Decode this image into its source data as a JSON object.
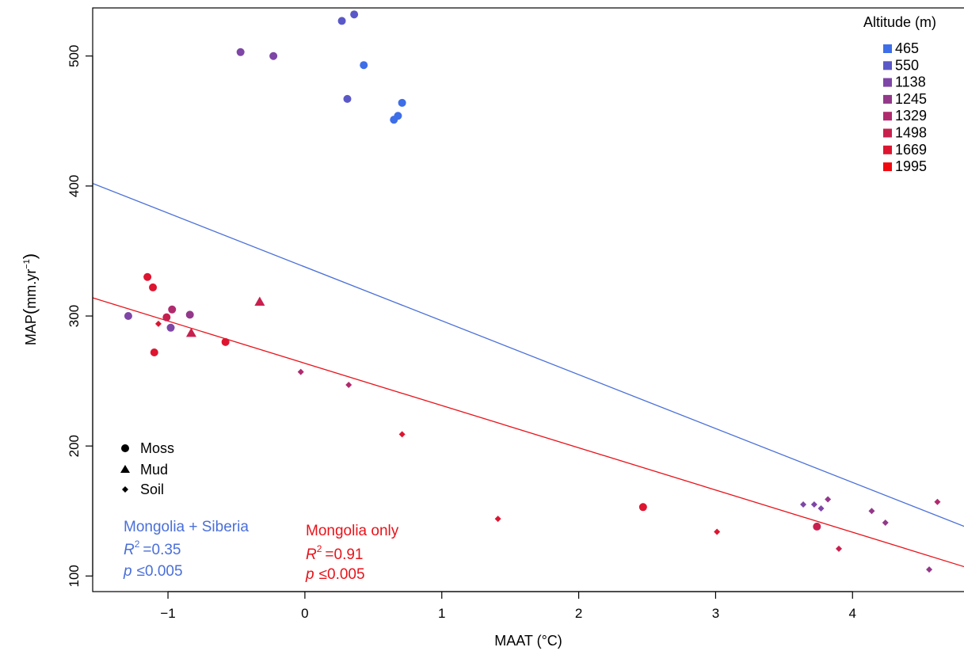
{
  "chart_data": {
    "type": "scatter",
    "xlabel": "MAAT (°C)",
    "ylabel_main": "MAP",
    "ylabel_unit_text": "mm.yr",
    "ylabel_unit_sup": "−1",
    "xlim": [
      -1.55,
      4.82
    ],
    "ylim": [
      88,
      537
    ],
    "xticks": [
      -1,
      0,
      1,
      2,
      3,
      4
    ],
    "xtick_labels": [
      "−1",
      "0",
      "1",
      "2",
      "3",
      "4"
    ],
    "yticks": [
      100,
      200,
      300,
      400,
      500
    ],
    "ytick_labels": [
      "100",
      "200",
      "300",
      "400",
      "500"
    ],
    "grid": false,
    "legend_altitude": {
      "title": "Altitude (m)",
      "position": "top-right",
      "entries": [
        {
          "label": "465",
          "color": "#3E6EE8"
        },
        {
          "label": "550",
          "color": "#5A58C8"
        },
        {
          "label": "1138",
          "color": "#7E46A6"
        },
        {
          "label": "1245",
          "color": "#93388A"
        },
        {
          "label": "1329",
          "color": "#B02A6E"
        },
        {
          "label": "1498",
          "color": "#C8204E"
        },
        {
          "label": "1669",
          "color": "#DD1530"
        },
        {
          "label": "1995",
          "color": "#F00A10"
        }
      ]
    },
    "legend_shapes": {
      "position": "bottom-left",
      "entries": [
        {
          "label": "Moss",
          "shape": "circle"
        },
        {
          "label": "Mud",
          "shape": "triangle"
        },
        {
          "label": "Soil",
          "shape": "diamond"
        }
      ]
    },
    "regressions": [
      {
        "color": "#4A6FD8",
        "x": [
          -1.55,
          4.82
        ],
        "y": [
          402,
          138
        ]
      },
      {
        "color": "#E8131A",
        "x": [
          -1.55,
          4.82
        ],
        "y": [
          314,
          107
        ]
      }
    ],
    "annotations": [
      {
        "color": "#4A6FD8",
        "label": "Mongolia + Siberia",
        "r2_symbol": "R",
        "r2_sup": "2",
        "r2_value": "=0.35",
        "p_symbol": "p",
        "p_value": "≤0.005"
      },
      {
        "color": "#E8131A",
        "label": "Mongolia only",
        "r2_symbol": "R",
        "r2_sup": "2",
        "r2_value": "=0.91",
        "p_symbol": "p",
        "p_value": "≤0.005"
      }
    ],
    "points": [
      {
        "x": 0.36,
        "y": 532,
        "shape": "circle",
        "color": "#5A58C8"
      },
      {
        "x": 0.27,
        "y": 527,
        "shape": "circle",
        "color": "#5A58C8"
      },
      {
        "x": -0.47,
        "y": 503,
        "shape": "circle",
        "color": "#7E46A6"
      },
      {
        "x": -0.23,
        "y": 500,
        "shape": "circle",
        "color": "#7E46A6"
      },
      {
        "x": 0.43,
        "y": 493,
        "shape": "circle",
        "color": "#3E6EE8"
      },
      {
        "x": 0.31,
        "y": 467,
        "shape": "circle",
        "color": "#5A58C8"
      },
      {
        "x": 0.71,
        "y": 464,
        "shape": "circle",
        "color": "#3E6EE8"
      },
      {
        "x": 0.68,
        "y": 454,
        "shape": "circle",
        "color": "#3E6EE8"
      },
      {
        "x": 0.65,
        "y": 451,
        "shape": "circle",
        "color": "#3E6EE8"
      },
      {
        "x": -1.15,
        "y": 330,
        "shape": "circle",
        "color": "#DD1530"
      },
      {
        "x": -1.11,
        "y": 322,
        "shape": "circle",
        "color": "#DD1530"
      },
      {
        "x": -0.33,
        "y": 311,
        "shape": "triangle",
        "color": "#C8204E"
      },
      {
        "x": -0.97,
        "y": 305,
        "shape": "circle",
        "color": "#B02A6E"
      },
      {
        "x": -0.84,
        "y": 301,
        "shape": "circle",
        "color": "#93388A"
      },
      {
        "x": -1.29,
        "y": 300,
        "shape": "circle",
        "color": "#7E46A6"
      },
      {
        "x": -1.01,
        "y": 299,
        "shape": "circle",
        "color": "#C8204E"
      },
      {
        "x": -1.07,
        "y": 294,
        "shape": "diamond",
        "color": "#DD1530"
      },
      {
        "x": -0.98,
        "y": 291,
        "shape": "circle",
        "color": "#7E46A6"
      },
      {
        "x": -0.83,
        "y": 287,
        "shape": "triangle",
        "color": "#C8204E"
      },
      {
        "x": -0.58,
        "y": 280,
        "shape": "circle",
        "color": "#DD1530"
      },
      {
        "x": -1.1,
        "y": 272,
        "shape": "circle",
        "color": "#DD1530"
      },
      {
        "x": -0.03,
        "y": 257,
        "shape": "diamond",
        "color": "#B02A6E"
      },
      {
        "x": 0.32,
        "y": 247,
        "shape": "diamond",
        "color": "#B02A6E"
      },
      {
        "x": 0.71,
        "y": 209,
        "shape": "diamond",
        "color": "#DD1530"
      },
      {
        "x": 3.64,
        "y": 155,
        "shape": "diamond",
        "color": "#7E46A6"
      },
      {
        "x": 3.72,
        "y": 155,
        "shape": "diamond",
        "color": "#7E46A6"
      },
      {
        "x": 3.77,
        "y": 152,
        "shape": "diamond",
        "color": "#7E46A6"
      },
      {
        "x": 3.82,
        "y": 159,
        "shape": "diamond",
        "color": "#93388A"
      },
      {
        "x": 4.14,
        "y": 150,
        "shape": "diamond",
        "color": "#93388A"
      },
      {
        "x": 4.24,
        "y": 141,
        "shape": "diamond",
        "color": "#93388A"
      },
      {
        "x": 4.62,
        "y": 157,
        "shape": "diamond",
        "color": "#B02A6E"
      },
      {
        "x": 1.41,
        "y": 144,
        "shape": "diamond",
        "color": "#DD1530"
      },
      {
        "x": 2.47,
        "y": 153,
        "shape": "circle",
        "color": "#DD1530"
      },
      {
        "x": 3.01,
        "y": 134,
        "shape": "diamond",
        "color": "#DD1530"
      },
      {
        "x": 3.74,
        "y": 138,
        "shape": "circle",
        "color": "#C8204E"
      },
      {
        "x": 3.9,
        "y": 121,
        "shape": "diamond",
        "color": "#C8204E"
      },
      {
        "x": 4.56,
        "y": 105,
        "shape": "diamond",
        "color": "#93388A"
      }
    ]
  }
}
